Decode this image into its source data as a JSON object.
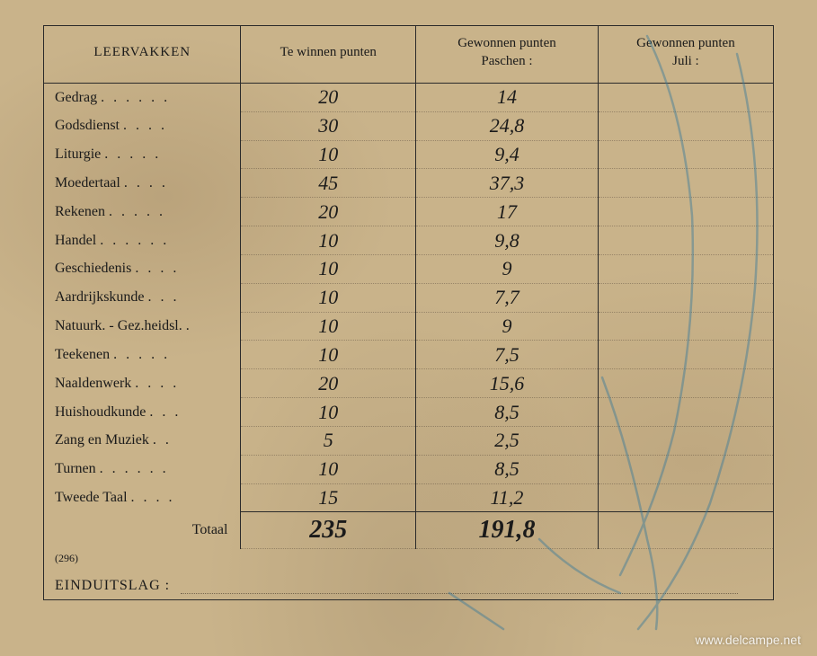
{
  "headers": {
    "col1": "LEERVAKKEN",
    "col2": "Te winnen punten",
    "col3_l1": "Gewonnen punten",
    "col3_l2": "Paschen :",
    "col4_l1": "Gewonnen punten",
    "col4_l2": "Juli :"
  },
  "rows": [
    {
      "subject": "Gedrag",
      "dots": ". . . . . .",
      "max": "20",
      "got": "14",
      "jul": ""
    },
    {
      "subject": "Godsdienst",
      "dots": ". . . .",
      "max": "30",
      "got": "24,8",
      "jul": ""
    },
    {
      "subject": "Liturgie",
      "dots": ". . . . .",
      "max": "10",
      "got": "9,4",
      "jul": ""
    },
    {
      "subject": "Moedertaal",
      "dots": ". . . .",
      "max": "45",
      "got": "37,3",
      "jul": ""
    },
    {
      "subject": "Rekenen",
      "dots": ". . . . .",
      "max": "20",
      "got": "17",
      "jul": ""
    },
    {
      "subject": "Handel",
      "dots": ". . . . . .",
      "max": "10",
      "got": "9,8",
      "jul": ""
    },
    {
      "subject": "Geschiedenis",
      "dots": ". . . .",
      "max": "10",
      "got": "9",
      "jul": ""
    },
    {
      "subject": "Aardrijkskunde",
      "dots": ". . .",
      "max": "10",
      "got": "7,7",
      "jul": ""
    },
    {
      "subject": "Natuurk. - Gez.heidsl.",
      "dots": ".",
      "max": "10",
      "got": "9",
      "jul": ""
    },
    {
      "subject": "Teekenen",
      "dots": ". . . . .",
      "max": "10",
      "got": "7,5",
      "jul": ""
    },
    {
      "subject": "Naaldenwerk",
      "dots": ". . . .",
      "max": "20",
      "got": "15,6",
      "jul": ""
    },
    {
      "subject": "Huishoudkunde",
      "dots": ". . .",
      "max": "10",
      "got": "8,5",
      "jul": ""
    },
    {
      "subject": "Zang en Muziek",
      "dots": ". .",
      "max": "5",
      "got": "2,5",
      "jul": ""
    },
    {
      "subject": "Turnen",
      "dots": ". . . . . .",
      "max": "10",
      "got": "8,5",
      "jul": ""
    },
    {
      "subject": "Tweede Taal",
      "dots": ". . . .",
      "max": "15",
      "got": "11,2",
      "jul": ""
    }
  ],
  "total": {
    "label": "Totaal",
    "max": "235",
    "got": "191,8",
    "jul": ""
  },
  "footnote": "(296)",
  "einduitslag_label": "EINDUITSLAG :",
  "watermark": "www.delcampe.net",
  "colors": {
    "paper": "#c9b38a",
    "ink": "#1a1a1a",
    "rule": "#2a2a2a",
    "dotrule": "rgba(60,50,40,0.35)",
    "scribble": "#2a6a8a"
  }
}
